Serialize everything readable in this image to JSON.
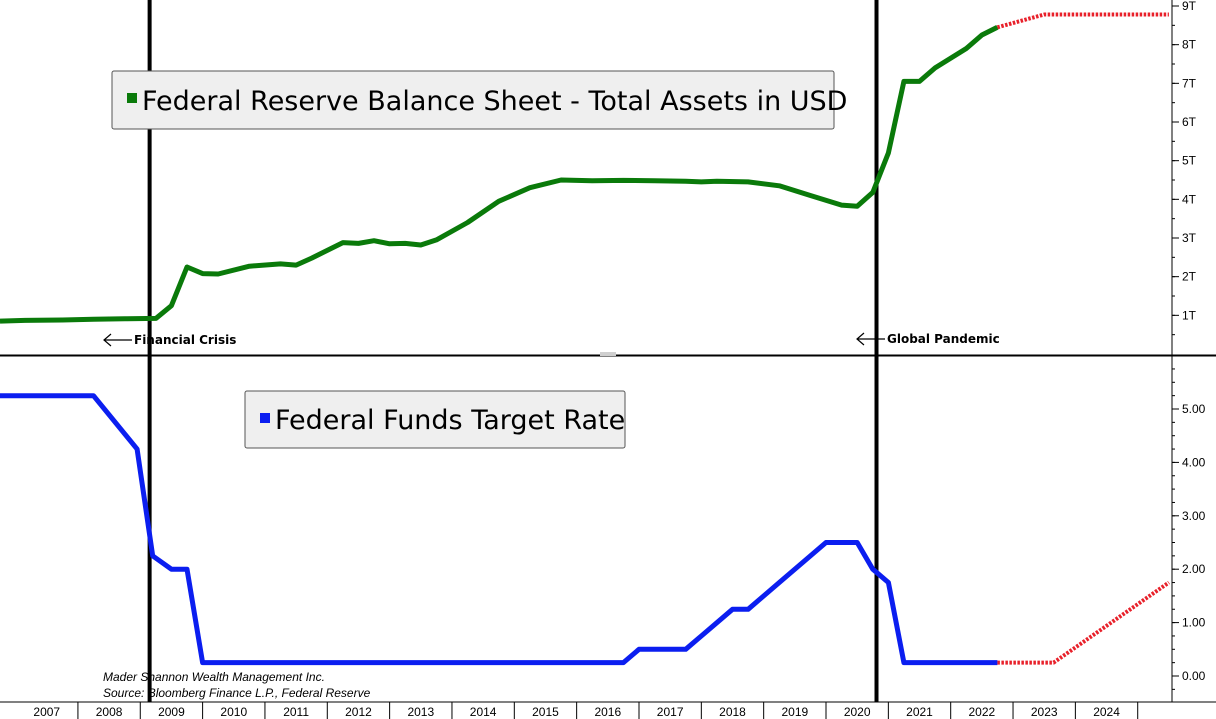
{
  "chart_data": [
    {
      "type": "line",
      "legend": "Federal Reserve Balance Sheet - Total Assets in USD",
      "color": "#0a7a0a",
      "forecast_color": "#e8202a",
      "ylim": [
        0,
        9
      ],
      "yticks": [
        {
          "value": 1,
          "label": "1T"
        },
        {
          "value": 2,
          "label": "2T"
        },
        {
          "value": 3,
          "label": "3T"
        },
        {
          "value": 4,
          "label": "4T"
        },
        {
          "value": 5,
          "label": "5T"
        },
        {
          "value": 6,
          "label": "6T"
        },
        {
          "value": 7,
          "label": "7T"
        },
        {
          "value": 8,
          "label": "8T"
        },
        {
          "value": 9,
          "label": "9T"
        }
      ],
      "series": [
        {
          "values": [
            [
              2006.0,
              0.85
            ],
            [
              2006.4,
              0.87
            ],
            [
              2007.0,
              0.88
            ],
            [
              2007.5,
              0.9
            ],
            [
              2008.0,
              0.91
            ],
            [
              2008.5,
              0.92
            ],
            [
              2008.75,
              1.25
            ],
            [
              2009.0,
              2.25
            ],
            [
              2009.25,
              2.08
            ],
            [
              2009.5,
              2.07
            ],
            [
              2010.0,
              2.27
            ],
            [
              2010.5,
              2.33
            ],
            [
              2010.75,
              2.3
            ],
            [
              2011.0,
              2.48
            ],
            [
              2011.5,
              2.88
            ],
            [
              2011.75,
              2.86
            ],
            [
              2012.0,
              2.93
            ],
            [
              2012.25,
              2.85
            ],
            [
              2012.5,
              2.86
            ],
            [
              2012.75,
              2.82
            ],
            [
              2013.0,
              2.95
            ],
            [
              2013.5,
              3.4
            ],
            [
              2014.0,
              3.95
            ],
            [
              2014.5,
              4.3
            ],
            [
              2015.0,
              4.5
            ],
            [
              2015.5,
              4.48
            ],
            [
              2016.0,
              4.49
            ],
            [
              2016.5,
              4.48
            ],
            [
              2017.0,
              4.47
            ],
            [
              2017.25,
              4.45
            ],
            [
              2017.5,
              4.47
            ],
            [
              2018.0,
              4.45
            ],
            [
              2018.5,
              4.35
            ],
            [
              2019.0,
              4.1
            ],
            [
              2019.5,
              3.85
            ],
            [
              2019.75,
              3.82
            ],
            [
              2020.0,
              4.18
            ],
            [
              2020.25,
              5.2
            ],
            [
              2020.5,
              7.05
            ],
            [
              2020.75,
              7.05
            ],
            [
              2021.0,
              7.4
            ],
            [
              2021.5,
              7.9
            ],
            [
              2021.75,
              8.25
            ],
            [
              2022.0,
              8.45
            ]
          ]
        },
        {
          "forecast": true,
          "values": [
            [
              2022.0,
              8.45
            ],
            [
              2022.75,
              8.78
            ],
            [
              2024.75,
              8.78
            ]
          ]
        }
      ],
      "annotations": [
        {
          "x": 2008.4,
          "text": "Financial Crisis"
        },
        {
          "x": 2020.06,
          "text": "Global Pandemic"
        }
      ]
    },
    {
      "type": "line",
      "legend": "Federal Funds Target Rate",
      "color": "#0b1ef0",
      "forecast_color": "#e8202a",
      "ylim": [
        -0.3,
        6.0
      ],
      "yticks": [
        {
          "value": 0,
          "label": "0.00"
        },
        {
          "value": 1,
          "label": "1.00"
        },
        {
          "value": 2,
          "label": "2.00"
        },
        {
          "value": 3,
          "label": "3.00"
        },
        {
          "value": 4,
          "label": "4.00"
        },
        {
          "value": 5,
          "label": "5.00"
        }
      ],
      "series": [
        {
          "values": [
            [
              2006.0,
              5.25
            ],
            [
              2007.5,
              5.25
            ],
            [
              2008.2,
              4.25
            ],
            [
              2008.45,
              2.25
            ],
            [
              2008.75,
              2.0
            ],
            [
              2009.0,
              2.0
            ],
            [
              2009.25,
              0.25
            ],
            [
              2016.0,
              0.25
            ],
            [
              2016.25,
              0.5
            ],
            [
              2017.0,
              0.5
            ],
            [
              2017.25,
              0.75
            ],
            [
              2017.75,
              1.25
            ],
            [
              2018.0,
              1.25
            ],
            [
              2018.5,
              1.75
            ],
            [
              2019.0,
              2.25
            ],
            [
              2019.25,
              2.5
            ],
            [
              2019.75,
              2.5
            ],
            [
              2020.0,
              2.0
            ],
            [
              2020.25,
              1.75
            ],
            [
              2020.5,
              0.25
            ],
            [
              2022.0,
              0.25
            ]
          ]
        },
        {
          "forecast": true,
          "values": [
            [
              2022.0,
              0.25
            ],
            [
              2022.9,
              0.25
            ],
            [
              2024.75,
              1.75
            ]
          ]
        }
      ]
    }
  ],
  "x_axis": {
    "range": [
      2006.0,
      2024.8
    ],
    "tick_labels": [
      "2007",
      "2008",
      "2009",
      "2010",
      "2011",
      "2012",
      "2013",
      "2014",
      "2015",
      "2016",
      "2017",
      "2018",
      "2019",
      "2020",
      "2021",
      "2022",
      "2023",
      "2024"
    ],
    "tick_label_years": [
      2006.75,
      2007.75,
      2008.75,
      2009.75,
      2010.75,
      2011.75,
      2012.75,
      2013.75,
      2014.75,
      2015.75,
      2016.75,
      2017.75,
      2018.75,
      2019.75,
      2020.75,
      2021.75,
      2022.75,
      2023.75
    ],
    "grid": false
  },
  "event_lines": [
    2008.4,
    2020.06
  ],
  "source": {
    "line1": "Mader Shannon Wealth Management Inc.",
    "line2": "Source: Bloomberg Finance L.P., Federal Reserve"
  }
}
